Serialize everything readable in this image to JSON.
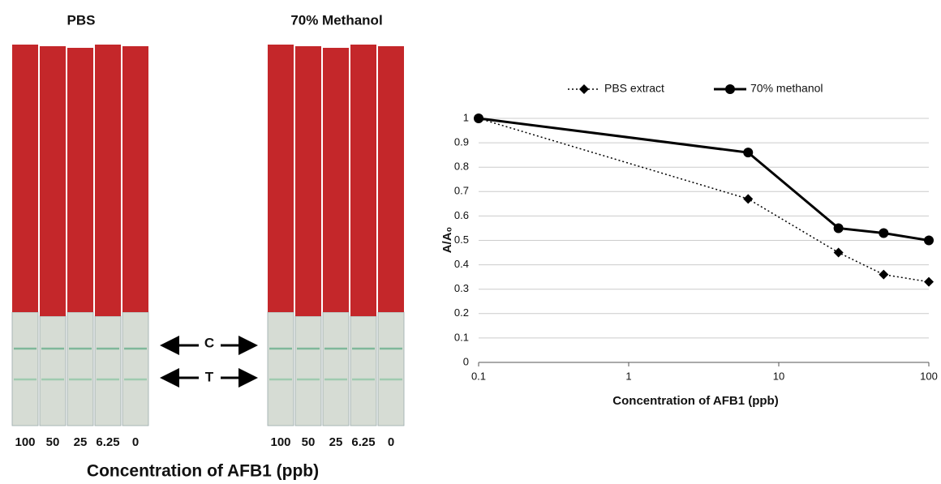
{
  "strips": {
    "groups": [
      {
        "title": "PBS",
        "lanes": [
          "100",
          "50",
          "25",
          "6.25",
          "0"
        ]
      },
      {
        "title": "70% Methanol",
        "lanes": [
          "100",
          "50",
          "25",
          "6.25",
          "0"
        ]
      }
    ],
    "c_label": "C",
    "t_label": "T",
    "x_label": "Concentration of AFB1 (ppb)"
  },
  "chart_data": {
    "type": "line",
    "x": [
      0.1,
      6.25,
      25,
      50,
      100
    ],
    "series": [
      {
        "name": "PBS extract",
        "color": "#000000",
        "line_style": "dotted",
        "marker": "diamond",
        "values": [
          1,
          0.67,
          0.45,
          0.36,
          0.33
        ]
      },
      {
        "name": "70% methanol",
        "color": "#000000",
        "line_style": "solid",
        "marker": "circle",
        "values": [
          1,
          0.86,
          0.55,
          0.53,
          0.5
        ]
      }
    ],
    "x_label": "Concentration of AFB1 (ppb)",
    "y_label": "A/A₀",
    "xscale": "log",
    "xlim": [
      0.1,
      100
    ],
    "xticks": [
      0.1,
      1,
      10,
      100
    ],
    "ylim": [
      0,
      1
    ],
    "yticks": [
      0,
      0.1,
      0.2,
      0.3,
      0.4,
      0.5,
      0.6,
      0.7,
      0.8,
      0.9,
      1
    ],
    "grid": true,
    "legend": "top"
  }
}
